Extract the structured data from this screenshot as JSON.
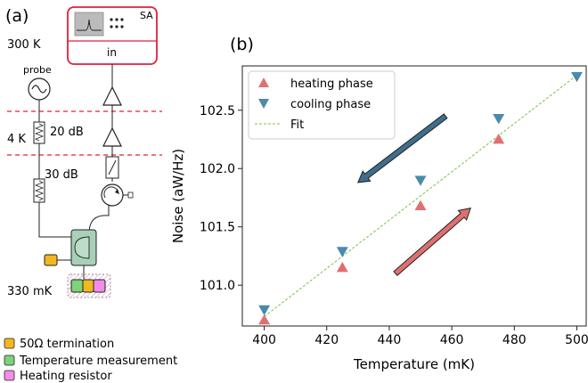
{
  "panel_a": {
    "label": "(a)",
    "temp_room": "300 K",
    "temp_4k": "4 K",
    "temp_mk": "330 mK",
    "probe_label": "probe",
    "att1_label": "20 dB",
    "att2_label": "30 dB",
    "sa_label": "SA",
    "sa_input_label": "in",
    "colors": {
      "termination": "#f2b821",
      "temperature": "#7fd17a",
      "heater": "#f28ce8",
      "circulator_box": "#a8d0b8",
      "stage_box": "#f0c8d8",
      "sa_border": "#e0203a",
      "stage_lines": "#e8202a"
    }
  },
  "legend_a": {
    "items": [
      {
        "label": "50Ω termination",
        "color": "#f2b821"
      },
      {
        "label": "Temperature measurement",
        "color": "#7fd17a"
      },
      {
        "label": "Heating resistor",
        "color": "#f28ce8"
      }
    ]
  },
  "panel_b": {
    "label": "(b)"
  },
  "chart_data": {
    "type": "scatter",
    "xlabel": "Temperature (mK)",
    "ylabel": "Noise (aW/Hz)",
    "xlim": [
      393,
      503
    ],
    "ylim": [
      100.65,
      102.88
    ],
    "xticks": [
      400,
      420,
      440,
      460,
      480,
      500
    ],
    "yticks": [
      101.0,
      101.5,
      102.0,
      102.5
    ],
    "grid": false,
    "legend_position": "top-left",
    "series": [
      {
        "name": "heating phase",
        "marker": "triangle-up",
        "color": "#e07070",
        "x": [
          400,
          425,
          450,
          475
        ],
        "y": [
          100.7,
          101.15,
          101.68,
          102.25
        ]
      },
      {
        "name": "cooling phase",
        "marker": "triangle-down",
        "color": "#4a8aaa",
        "x": [
          400,
          425,
          450,
          475,
          500
        ],
        "y": [
          100.79,
          101.29,
          101.9,
          102.43,
          102.79
        ]
      },
      {
        "name": "Fit",
        "type": "line",
        "style": "dashed",
        "color": "#7ac143",
        "x": [
          400,
          500
        ],
        "y": [
          100.73,
          102.8
        ]
      }
    ],
    "arrows": [
      {
        "direction": "down-left",
        "color": "#3f6e8a",
        "from": [
          458,
          102.45
        ],
        "to": [
          430,
          101.88
        ]
      },
      {
        "direction": "up-right",
        "color": "#e07070",
        "from": [
          442,
          101.1
        ],
        "to": [
          466,
          101.66
        ]
      }
    ]
  }
}
